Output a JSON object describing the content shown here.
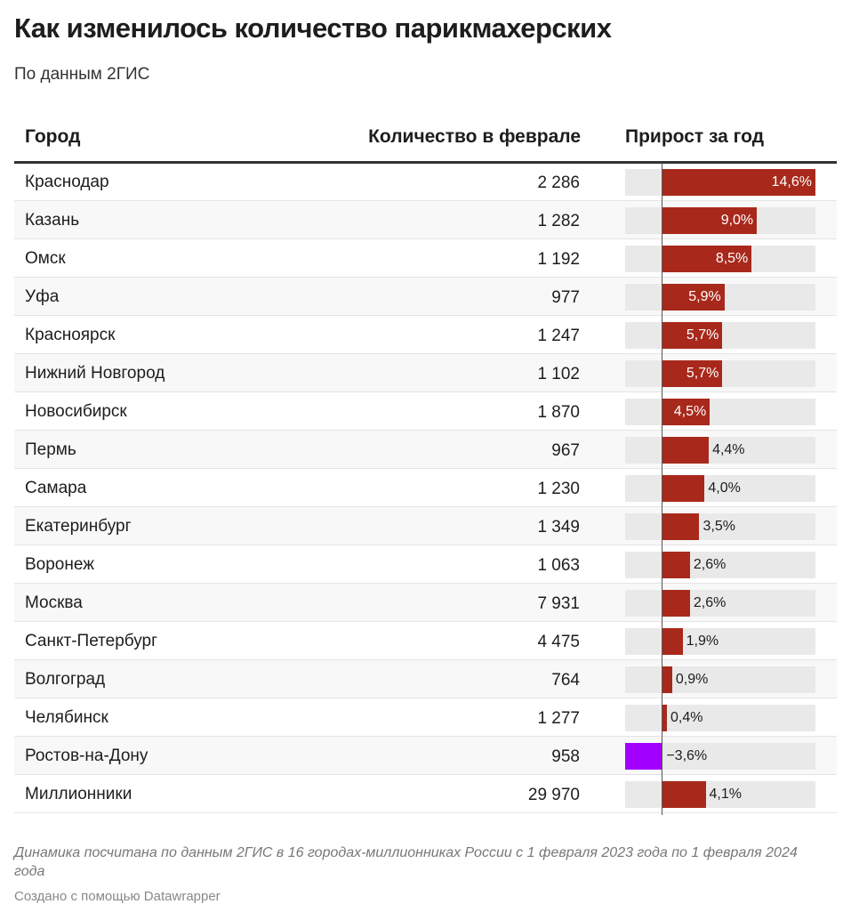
{
  "title": "Как изменилось количество парикмахерских",
  "subtitle": "По данным 2ГИС",
  "chart_data": {
    "type": "table",
    "columns": [
      "Город",
      "Количество в феврале",
      "Прирост за год"
    ],
    "rows": [
      {
        "city": "Краснодар",
        "count": "2 286",
        "growth": 14.6,
        "label": "14,6%"
      },
      {
        "city": "Казань",
        "count": "1 282",
        "growth": 9.0,
        "label": "9,0%"
      },
      {
        "city": "Омск",
        "count": "1 192",
        "growth": 8.5,
        "label": "8,5%"
      },
      {
        "city": "Уфа",
        "count": "977",
        "growth": 5.9,
        "label": "5,9%"
      },
      {
        "city": "Красноярск",
        "count": "1 247",
        "growth": 5.7,
        "label": "5,7%"
      },
      {
        "city": "Нижний Новгород",
        "count": "1 102",
        "growth": 5.7,
        "label": "5,7%"
      },
      {
        "city": "Новосибирск",
        "count": "1 870",
        "growth": 4.5,
        "label": "4,5%"
      },
      {
        "city": "Пермь",
        "count": "967",
        "growth": 4.4,
        "label": "4,4%"
      },
      {
        "city": "Самара",
        "count": "1 230",
        "growth": 4.0,
        "label": "4,0%"
      },
      {
        "city": "Екатеринбург",
        "count": "1 349",
        "growth": 3.5,
        "label": "3,5%"
      },
      {
        "city": "Воронеж",
        "count": "1 063",
        "growth": 2.6,
        "label": "2,6%"
      },
      {
        "city": "Москва",
        "count": "7 931",
        "growth": 2.6,
        "label": "2,6%"
      },
      {
        "city": "Санкт-Петербург",
        "count": "4 475",
        "growth": 1.9,
        "label": "1,9%"
      },
      {
        "city": "Волгоград",
        "count": "764",
        "growth": 0.9,
        "label": "0,9%"
      },
      {
        "city": "Челябинск",
        "count": "1 277",
        "growth": 0.4,
        "label": "0,4%"
      },
      {
        "city": "Ростов-на-Дону",
        "count": "958",
        "growth": -3.6,
        "label": "−3,6%"
      },
      {
        "city": "Миллионники",
        "count": "29 970",
        "growth": 4.1,
        "label": "4,1%"
      }
    ],
    "xlim": [
      -3.6,
      14.6
    ],
    "colors": {
      "positive": "#a8291b",
      "negative": "#a100ff",
      "background": "#e9e9e9"
    }
  },
  "note": "Динамика посчитана по данным 2ГИС в 16 городах-миллионниках России с 1 февраля 2023 года по 1 февраля 2024 года",
  "credit": "Создано с помощью Datawrapper"
}
